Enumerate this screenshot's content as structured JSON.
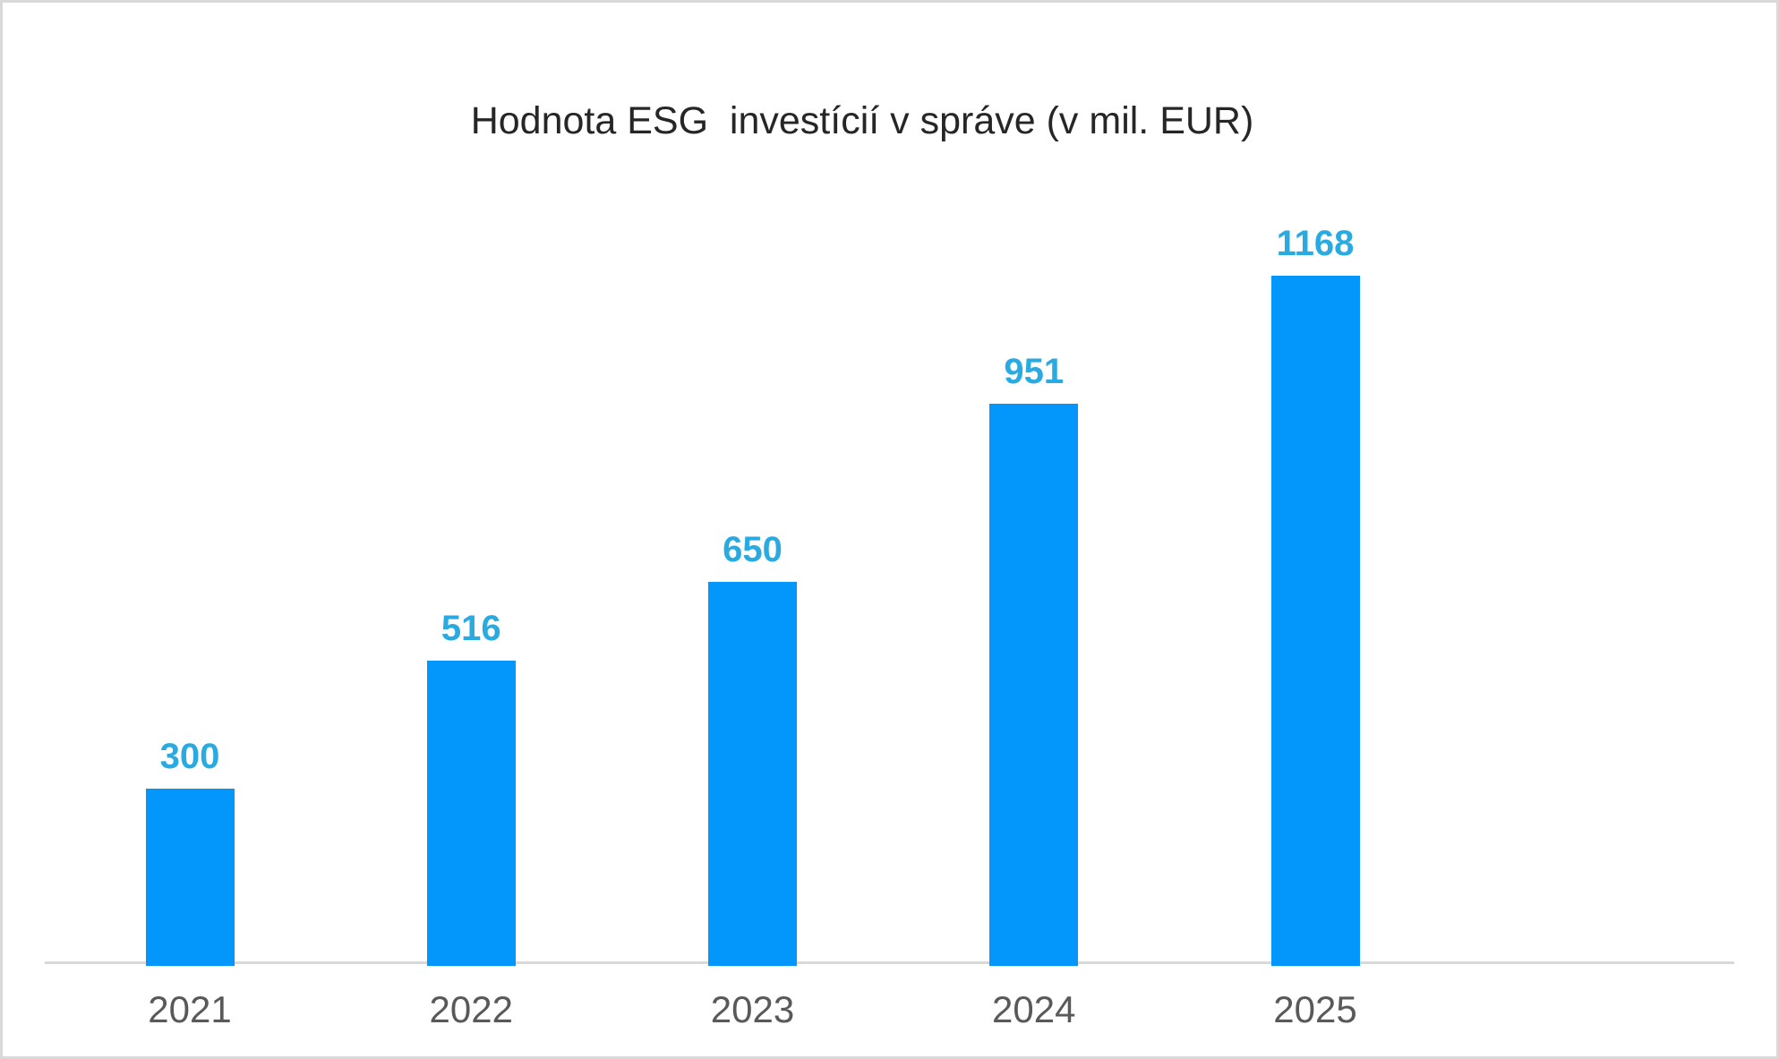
{
  "chart_data": {
    "type": "bar",
    "title": "Hodnota ESG  investícií v správe (v mil. EUR)",
    "categories": [
      "2021",
      "2022",
      "2023",
      "2024",
      "2025"
    ],
    "values": [
      300,
      516,
      650,
      951,
      1168
    ],
    "data_labels": [
      "300",
      "516",
      "650",
      "951",
      "1168"
    ],
    "xlabel": "",
    "ylabel": "",
    "ylim": [
      0,
      1200
    ],
    "grid": false,
    "legend_position": "none",
    "colors": {
      "bar_fill": "#0397fb",
      "data_label": "#29abe2",
      "category_label": "#595959",
      "title": "#262626",
      "axis_line": "#d9d9d9",
      "canvas_border": "#d9d9d9",
      "background": "#ffffff"
    }
  }
}
